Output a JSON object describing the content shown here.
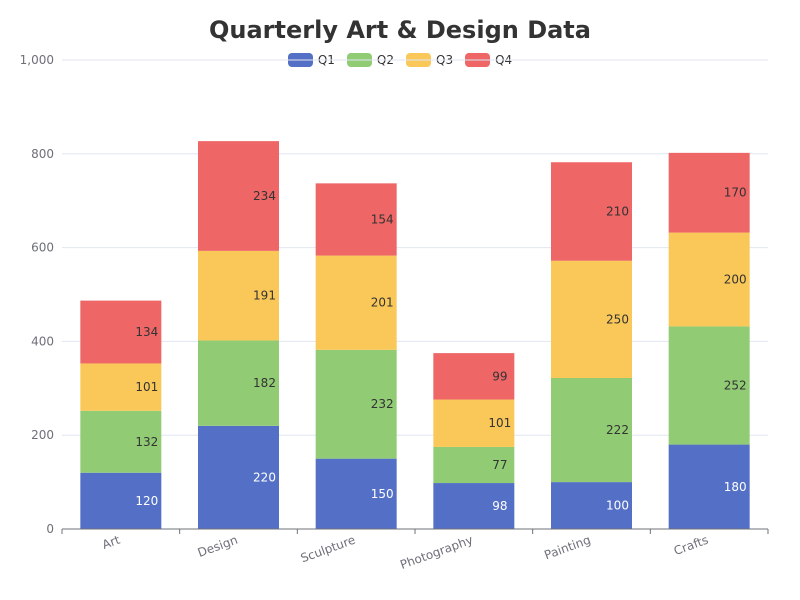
{
  "chart_data": {
    "type": "bar",
    "stacked": true,
    "title": "Quarterly Art & Design Data",
    "xlabel": "",
    "ylabel": "",
    "categories": [
      "Art",
      "Design",
      "Sculpture",
      "Photography",
      "Painting",
      "Crafts"
    ],
    "series": [
      {
        "name": "Q1",
        "color": "#5470c6",
        "values": [
          120,
          220,
          150,
          98,
          100,
          180
        ]
      },
      {
        "name": "Q2",
        "color": "#91cc75",
        "values": [
          132,
          182,
          232,
          77,
          222,
          252
        ]
      },
      {
        "name": "Q3",
        "color": "#fac858",
        "values": [
          101,
          191,
          201,
          101,
          250,
          200
        ]
      },
      {
        "name": "Q4",
        "color": "#ee6666",
        "values": [
          134,
          234,
          154,
          99,
          210,
          170
        ]
      }
    ],
    "ylim": [
      0,
      1000
    ],
    "yticks": [
      0,
      200,
      400,
      600,
      800,
      1000
    ],
    "ytick_labels": [
      "0",
      "200",
      "400",
      "600",
      "800",
      "1,000"
    ],
    "grid": true,
    "legend_position": "top-center"
  }
}
